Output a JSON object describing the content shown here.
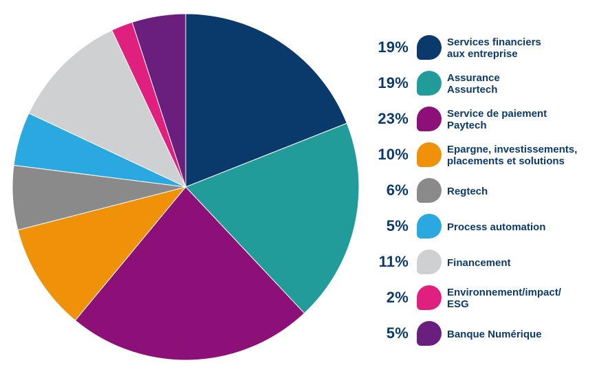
{
  "colors": {
    "text": "#0b3a6b"
  },
  "chart_data": {
    "type": "pie",
    "title": "",
    "legend_position": "right",
    "slices": [
      {
        "pct_label": "19%",
        "value": 19,
        "label_lines": [
          "Services financiers",
          "aux entreprise"
        ],
        "color": "#0a396c"
      },
      {
        "pct_label": "19%",
        "value": 19,
        "label_lines": [
          "Assurance",
          "Assurtech"
        ],
        "color": "#229c9b"
      },
      {
        "pct_label": "23%",
        "value": 23,
        "label_lines": [
          "Service de paiement",
          "Paytech"
        ],
        "color": "#8c1077"
      },
      {
        "pct_label": "10%",
        "value": 10,
        "label_lines": [
          "Epargne, investissements,",
          "placements et solutions"
        ],
        "color": "#ef9109"
      },
      {
        "pct_label": "6%",
        "value": 6,
        "label_lines": [
          "Regtech"
        ],
        "color": "#8a8a8a"
      },
      {
        "pct_label": "5%",
        "value": 5,
        "label_lines": [
          "Process automation"
        ],
        "color": "#2aa8e0"
      },
      {
        "pct_label": "11%",
        "value": 11,
        "label_lines": [
          "Financement"
        ],
        "color": "#cfd0d2"
      },
      {
        "pct_label": "2%",
        "value": 2,
        "label_lines": [
          "Environnement/impact/",
          "ESG"
        ],
        "color": "#e0207f"
      },
      {
        "pct_label": "5%",
        "value": 5,
        "label_lines": [
          "Banque Numérique"
        ],
        "color": "#6a1f7e"
      }
    ]
  }
}
